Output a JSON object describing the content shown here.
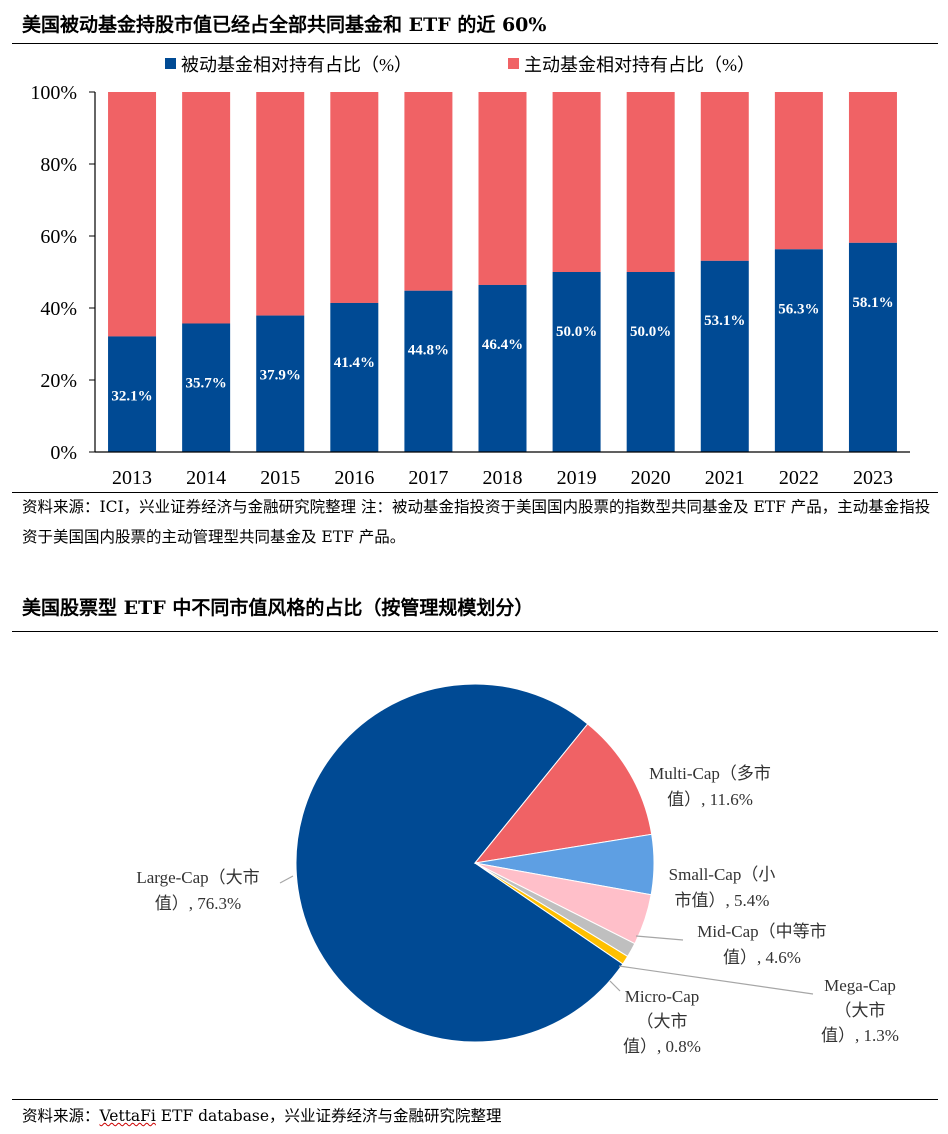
{
  "chart1": {
    "title": "美国被动基金持股市值已经占全部共同基金和 ETF 的近 60%",
    "note": "资料来源：ICI，兴业证券经济与金融研究院整理 注：被动基金指投资于美国国内股票的指数型共同基金及 ETF 产品，主动基金指投资于美国国内股票的主动管理型共同基金及 ETF 产品。",
    "colors": {
      "passive": "#004a94",
      "active": "#f06265"
    }
  },
  "chart2": {
    "title": "美国股票型 ETF 中不同市值风格的占比（按管理规模划分）",
    "source_prefix": "资料来源：",
    "source_wavy": "VettaFi",
    "source_rest": " ETF database，兴业证券经济与金融研究院整理",
    "colors": [
      "#004a94",
      "#f06265",
      "#5e9fe3",
      "#ffbfc9",
      "#bfbfbf",
      "#ffc000"
    ]
  },
  "chart_data": [
    {
      "type": "bar",
      "stacked": true,
      "categories": [
        "2013",
        "2014",
        "2015",
        "2016",
        "2017",
        "2018",
        "2019",
        "2020",
        "2021",
        "2022",
        "2023"
      ],
      "series": [
        {
          "name": "被动基金相对持有占比（%）",
          "values": [
            32.1,
            35.7,
            37.9,
            41.4,
            44.8,
            46.4,
            50.0,
            50.0,
            53.1,
            56.3,
            58.1
          ],
          "labels": [
            "32.1%",
            "35.7%",
            "37.9%",
            "41.4%",
            "44.8%",
            "46.4%",
            "50.0%",
            "50.0%",
            "53.1%",
            "56.3%",
            "58.1%"
          ]
        },
        {
          "name": "主动基金相对持有占比（%）",
          "values": [
            67.9,
            64.3,
            62.1,
            58.6,
            55.2,
            53.6,
            50.0,
            50.0,
            46.9,
            43.7,
            41.9
          ]
        }
      ],
      "yticks": [
        "0%",
        "20%",
        "40%",
        "60%",
        "80%",
        "100%"
      ],
      "ylim": [
        0,
        100
      ],
      "legend": "top"
    },
    {
      "type": "pie",
      "slices": [
        {
          "lines": [
            "Large-Cap（大市",
            "值）, 76.3%"
          ],
          "value": 76.3
        },
        {
          "lines": [
            "Multi-Cap（多市",
            "值）, 11.6%"
          ],
          "value": 11.6
        },
        {
          "lines": [
            "Small-Cap（小",
            "市值）, 5.4%"
          ],
          "value": 5.4
        },
        {
          "lines": [
            "Mid-Cap（中等市",
            "值）, 4.6%"
          ],
          "value": 4.6
        },
        {
          "lines": [
            "Mega-Cap",
            "（大市",
            "值）, 1.3%"
          ],
          "value": 1.3
        },
        {
          "lines": [
            "Micro-Cap",
            "（大市",
            "值）, 0.8%"
          ],
          "value": 0.8
        }
      ]
    }
  ]
}
